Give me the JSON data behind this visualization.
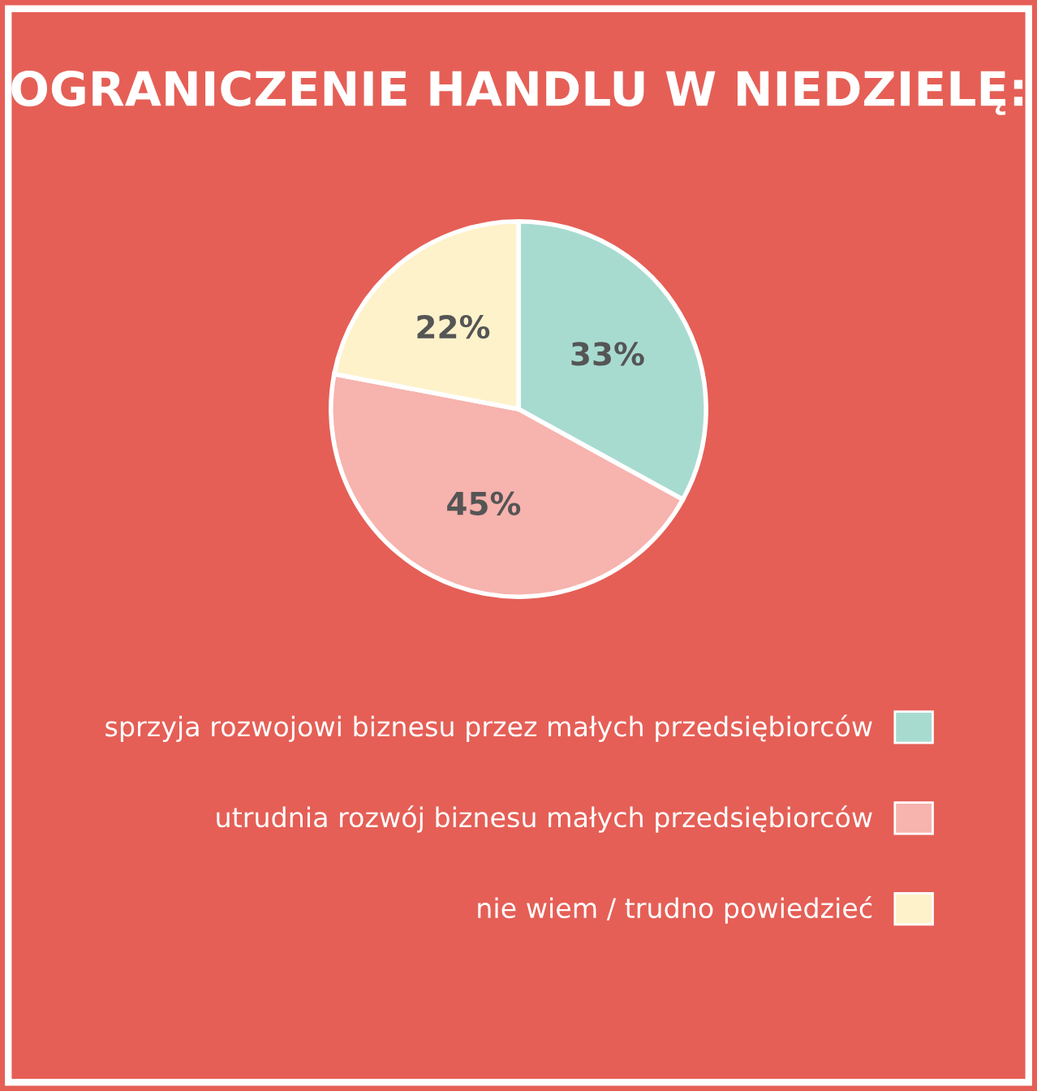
{
  "chart_data": {
    "type": "pie",
    "title": "OGRANICZENIE HANDLU W NIEDZIELĘ:",
    "categories": [
      "sprzyja rozwojowi biznesu przez małych przedsiębiorców",
      "utrudnia rozwój biznesu małych przedsiębiorców",
      "nie wiem / trudno powiedzieć"
    ],
    "values": [
      33,
      45,
      22
    ],
    "colors": [
      "#a8dbd0",
      "#f7b3ae",
      "#fef2cb"
    ],
    "value_labels": [
      "33%",
      "45%",
      "22%"
    ],
    "legend": "bottom"
  }
}
